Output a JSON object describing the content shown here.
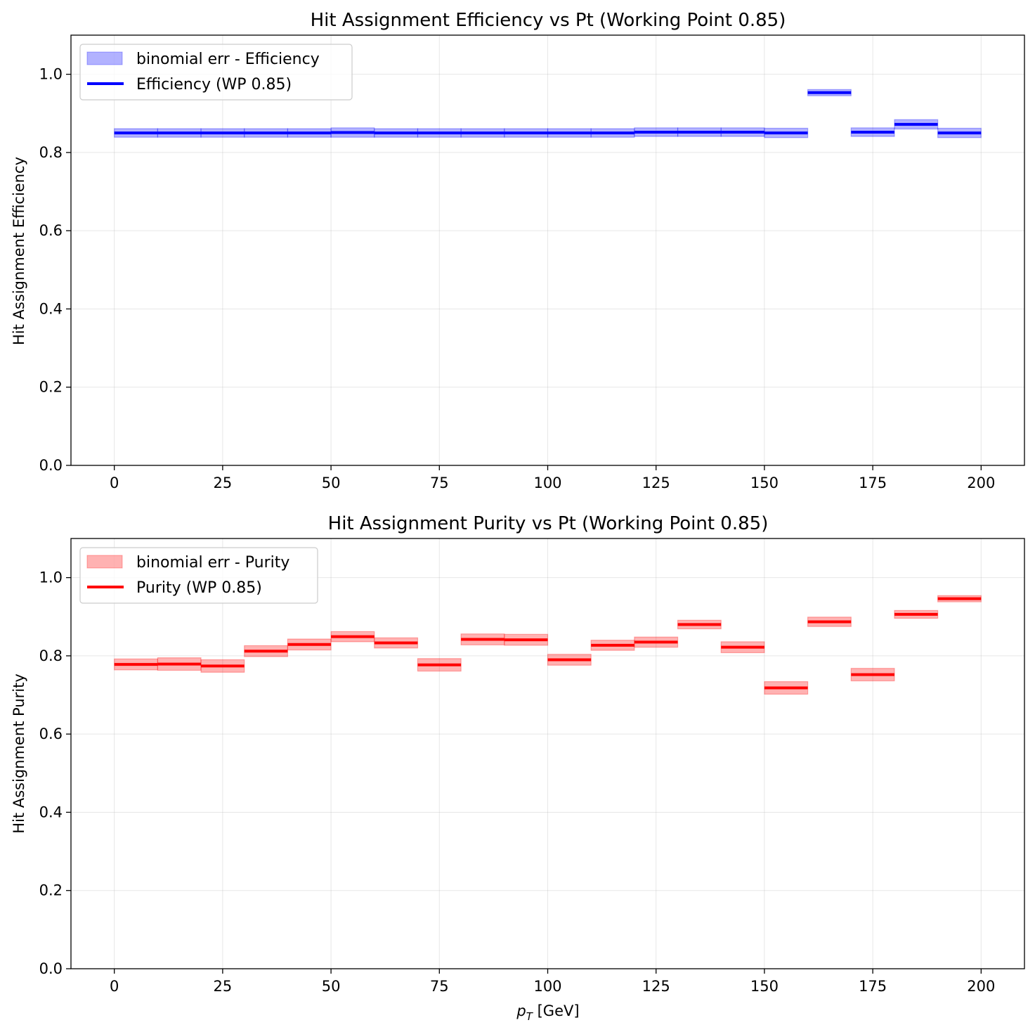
{
  "chart_data": [
    {
      "type": "step",
      "title": "Hit Assignment Efficiency vs Pt (Working Point 0.85)",
      "xlabel": "",
      "ylabel": "Hit Assignment Efficiency",
      "xlim": [
        -10,
        210
      ],
      "ylim": [
        0,
        1.1
      ],
      "xticks": [
        0,
        25,
        50,
        75,
        100,
        125,
        150,
        175,
        200
      ],
      "yticks": [
        0.0,
        0.2,
        0.4,
        0.6,
        0.8,
        1.0
      ],
      "grid": true,
      "legend_position": "upper-left",
      "color": "#0000ff",
      "bin_edges": [
        0,
        10,
        20,
        30,
        40,
        50,
        60,
        70,
        80,
        90,
        100,
        110,
        120,
        130,
        140,
        150,
        160,
        170,
        180,
        190,
        200
      ],
      "series": [
        {
          "name": "Efficiency (WP 0.85)",
          "band_name": "binomial err - Efficiency",
          "values": [
            0.85,
            0.85,
            0.85,
            0.85,
            0.85,
            0.851,
            0.85,
            0.85,
            0.85,
            0.85,
            0.85,
            0.85,
            0.852,
            0.852,
            0.852,
            0.85,
            0.953,
            0.852,
            0.872,
            0.85
          ],
          "errors": [
            0.011,
            0.011,
            0.011,
            0.011,
            0.011,
            0.012,
            0.011,
            0.011,
            0.011,
            0.011,
            0.011,
            0.011,
            0.011,
            0.011,
            0.011,
            0.012,
            0.008,
            0.011,
            0.012,
            0.012
          ]
        }
      ]
    },
    {
      "type": "step",
      "title": "Hit Assignment Purity vs Pt (Working Point 0.85)",
      "xlabel": "p_T [GeV]",
      "ylabel": "Hit Assignment Purity",
      "xlim": [
        -10,
        210
      ],
      "ylim": [
        0,
        1.1
      ],
      "xticks": [
        0,
        25,
        50,
        75,
        100,
        125,
        150,
        175,
        200
      ],
      "yticks": [
        0.0,
        0.2,
        0.4,
        0.6,
        0.8,
        1.0
      ],
      "grid": true,
      "legend_position": "upper-left",
      "color": "#ff0000",
      "bin_edges": [
        0,
        10,
        20,
        30,
        40,
        50,
        60,
        70,
        80,
        90,
        100,
        110,
        120,
        130,
        140,
        150,
        160,
        170,
        180,
        190,
        200
      ],
      "series": [
        {
          "name": "Purity (WP 0.85)",
          "band_name": "binomial err - Purity",
          "values": [
            0.778,
            0.779,
            0.774,
            0.812,
            0.829,
            0.849,
            0.833,
            0.777,
            0.842,
            0.841,
            0.79,
            0.827,
            0.835,
            0.88,
            0.822,
            0.718,
            0.887,
            0.752,
            0.906,
            0.946
          ],
          "errors": [
            0.014,
            0.016,
            0.016,
            0.014,
            0.014,
            0.013,
            0.013,
            0.016,
            0.014,
            0.014,
            0.014,
            0.013,
            0.013,
            0.011,
            0.014,
            0.016,
            0.012,
            0.016,
            0.01,
            0.008
          ]
        }
      ]
    }
  ]
}
